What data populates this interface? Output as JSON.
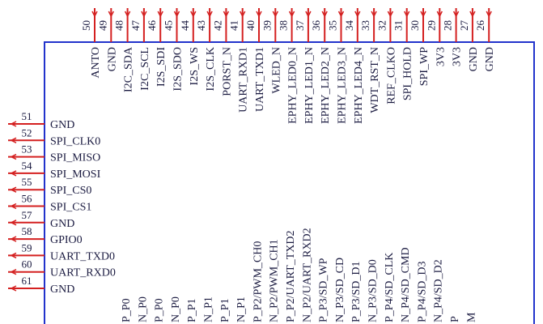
{
  "top_pins": [
    {
      "number": "50",
      "label": "ANTO"
    },
    {
      "number": "49",
      "label": "GND"
    },
    {
      "number": "48",
      "label": "I2C_SDA"
    },
    {
      "number": "47",
      "label": "I2C_SCL"
    },
    {
      "number": "46",
      "label": "I2S_SDI"
    },
    {
      "number": "45",
      "label": "I2S_SDO"
    },
    {
      "number": "44",
      "label": "I2S_WS"
    },
    {
      "number": "43",
      "label": "I2S_CLK"
    },
    {
      "number": "42",
      "label": "PORST_N"
    },
    {
      "number": "41",
      "label": "UART_RXD1"
    },
    {
      "number": "40",
      "label": "UART_TXD1"
    },
    {
      "number": "39",
      "label": "WLED_N"
    },
    {
      "number": "38",
      "label": "EPHY_LED0_N"
    },
    {
      "number": "37",
      "label": "EPHY_LED1_N"
    },
    {
      "number": "36",
      "label": "EPHY_LED2_N"
    },
    {
      "number": "35",
      "label": "EPHY_LED3_N"
    },
    {
      "number": "34",
      "label": "EPHY_LED4_N"
    },
    {
      "number": "33",
      "label": "WDT_RST_N"
    },
    {
      "number": "32",
      "label": "REF_CLKO"
    },
    {
      "number": "31",
      "label": "SPI_HOLD"
    },
    {
      "number": "30",
      "label": "SPI_WP"
    },
    {
      "number": "29",
      "label": "3V3"
    },
    {
      "number": "28",
      "label": "3V3"
    },
    {
      "number": "27",
      "label": "GND"
    },
    {
      "number": "26",
      "label": "GND"
    }
  ],
  "left_pins": [
    {
      "number": "51",
      "label": "GND"
    },
    {
      "number": "52",
      "label": "SPI_CLK0"
    },
    {
      "number": "53",
      "label": "SPI_MISO"
    },
    {
      "number": "54",
      "label": "SPI_MOSI"
    },
    {
      "number": "55",
      "label": "SPI_CS0"
    },
    {
      "number": "56",
      "label": "SPI_CS1"
    },
    {
      "number": "57",
      "label": "GND"
    },
    {
      "number": "58",
      "label": "GPIO0"
    },
    {
      "number": "59",
      "label": "UART_TXD0"
    },
    {
      "number": "60",
      "label": "UART_RXD0"
    },
    {
      "number": "61",
      "label": "GND"
    }
  ],
  "bottom_labels": [
    "P_P0",
    "N_P0",
    "P_P0",
    "N_P0",
    "P_P1",
    "N_P1",
    "P_P1",
    "N_P1",
    "P_P2/PWM_CH0",
    "N_P2/PWM_CH1",
    "P_P2/UART_TXD2",
    "N_P2/UART_RXD2",
    "P_P3/SD_WP",
    "N_P3/SD_CD",
    "P_P3/SD_D1",
    "N_P3/SD_D0",
    "P_P4/SD_CLK",
    "N_P4/SD_CMD",
    "P_P4/SD_D3",
    "N_P4/SD_D2",
    "P",
    "M"
  ]
}
